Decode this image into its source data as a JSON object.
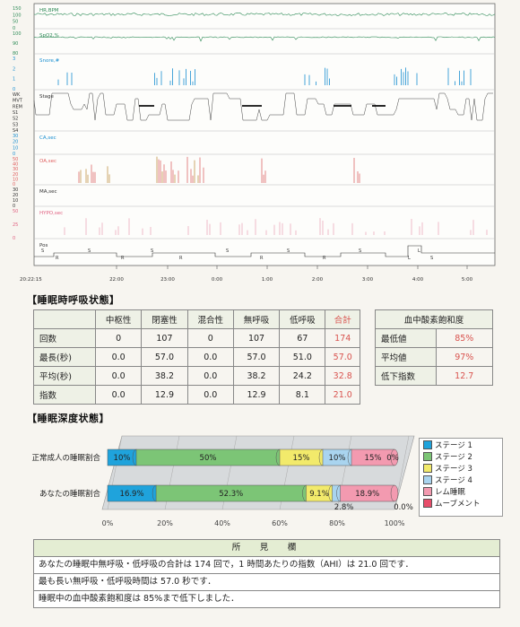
{
  "psg": {
    "channels": [
      {
        "label": "HR,BPM",
        "color": "#2e8b57",
        "scale": [
          "150",
          "100",
          "50",
          "0"
        ]
      },
      {
        "label": "SpO2,%",
        "color": "#2e8b57",
        "scale": [
          "100",
          "90",
          "80"
        ]
      },
      {
        "label": "Snore,#",
        "color": "#1a8fd1",
        "scale": [
          "3",
          "2",
          "1",
          "0"
        ]
      },
      {
        "label": "Stage",
        "color": "#333333",
        "scale": [
          "WK",
          "MVT",
          "REM",
          "S1",
          "S2",
          "S3",
          "S4"
        ]
      },
      {
        "label": "CA,sec",
        "color": "#1a8fd1",
        "scale": [
          "30",
          "20",
          "10",
          "0"
        ]
      },
      {
        "label": "OA,sec",
        "color": "#e06060",
        "scale": [
          "50",
          "40",
          "30",
          "20",
          "10",
          "0"
        ]
      },
      {
        "label": "MA,sec",
        "color": "#333333",
        "scale": [
          "30",
          "20",
          "10",
          "0"
        ]
      },
      {
        "label": "HYPO,sec",
        "color": "#e06080",
        "scale": [
          "50",
          "25",
          "0"
        ]
      },
      {
        "label": "Pos",
        "color": "#333333",
        "scale": []
      }
    ],
    "pos_letters": [
      "S",
      "R",
      "S",
      "R",
      "S",
      "R",
      "S",
      "R",
      "S",
      "R",
      "S",
      "L",
      "L",
      "S"
    ],
    "time_start": "20:22:15",
    "time_ticks": [
      "22:00",
      "23:00",
      "0:00",
      "1:00",
      "2:00",
      "3:00",
      "4:00",
      "5:00"
    ]
  },
  "respiratory": {
    "title": "【睡眠時呼吸状態】",
    "columns": [
      "",
      "中枢性",
      "閉塞性",
      "混合性",
      "無呼吸",
      "低呼吸",
      "合計"
    ],
    "rows": [
      {
        "label": "回数",
        "values": [
          "0",
          "107",
          "0",
          "107",
          "67",
          "174"
        ]
      },
      {
        "label": "最長(秒)",
        "values": [
          "0.0",
          "57.0",
          "0.0",
          "57.0",
          "51.0",
          "57.0"
        ]
      },
      {
        "label": "平均(秒)",
        "values": [
          "0.0",
          "38.2",
          "0.0",
          "38.2",
          "24.2",
          "32.8"
        ]
      },
      {
        "label": "指数",
        "values": [
          "0.0",
          "12.9",
          "0.0",
          "12.9",
          "8.1",
          "21.0"
        ]
      }
    ]
  },
  "spo2": {
    "title": "血中酸素飽和度",
    "rows": [
      {
        "label": "最低値",
        "value": "85%"
      },
      {
        "label": "平均値",
        "value": "97%"
      },
      {
        "label": "低下指数",
        "value": "12.7"
      }
    ]
  },
  "depth": {
    "title": "【睡眠深度状態】",
    "chart_data": {
      "type": "bar",
      "orientation": "horizontal-stacked",
      "categories": [
        "正常成人の睡眠割合",
        "あなたの睡眠割合"
      ],
      "series": [
        {
          "name": "ステージ 1",
          "color": "#1fa3dc",
          "values": [
            10,
            16.9
          ],
          "labels": [
            "10%",
            "16.9%"
          ]
        },
        {
          "name": "ステージ 2",
          "color": "#7cc576",
          "values": [
            50,
            52.3
          ],
          "labels": [
            "50%",
            "52.3%"
          ]
        },
        {
          "name": "ステージ 3",
          "color": "#f2ea6b",
          "values": [
            15,
            9.1
          ],
          "labels": [
            "15%",
            "9.1%"
          ]
        },
        {
          "name": "ステージ 4",
          "color": "#a9d4ef",
          "values": [
            10,
            2.8
          ],
          "labels": [
            "10%",
            "2.8%"
          ]
        },
        {
          "name": "レム睡眠",
          "color": "#f39ab0",
          "values": [
            15,
            18.9
          ],
          "labels": [
            "15%",
            "18.9%"
          ]
        },
        {
          "name": "ムーブメント",
          "color": "#e84d6a",
          "values": [
            0,
            0
          ],
          "labels": [
            "0%",
            "0.0%"
          ]
        }
      ],
      "x_ticks": [
        "0%",
        "20%",
        "40%",
        "60%",
        "80%",
        "100%"
      ],
      "xlim": [
        0,
        100
      ]
    }
  },
  "findings": {
    "header": "所　見　欄",
    "lines": [
      "あなたの睡眠中無呼吸・低呼吸の合計は 174 回で，1 時間あたりの指数（AHI）は 21.0 回です．",
      "最も長い無呼吸・低呼吸時間は 57.0 秒です．",
      "睡眠中の血中酸素飽和度は 85%まで低下しました．"
    ]
  }
}
